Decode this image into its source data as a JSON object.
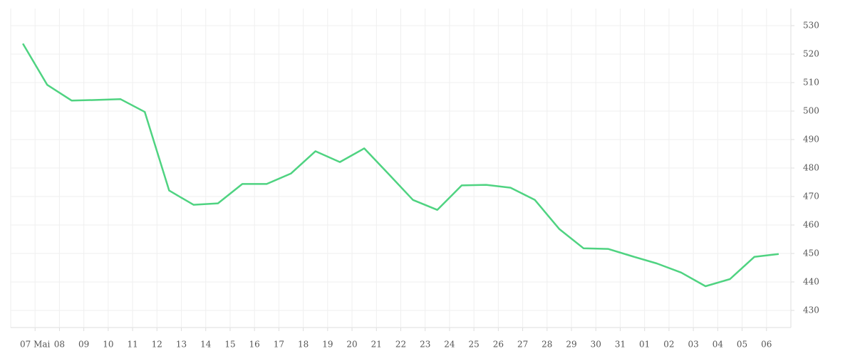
{
  "chart_data": {
    "type": "line",
    "x": [
      0.5,
      1.5,
      2.5,
      3.5,
      4.5,
      5.5,
      6.5,
      7.5,
      8.5,
      9.5,
      10.5,
      11.5,
      12.5,
      13.5,
      14.5,
      15.5,
      16.5,
      17.5,
      18.5,
      19.5,
      20.5,
      21.5,
      22.5,
      23.5,
      24.5,
      25.5,
      26.5,
      27.5,
      28.5,
      29.5,
      30.5,
      31.5
    ],
    "values": [
      523.7,
      509.2,
      503.7,
      503.9,
      504.2,
      499.7,
      472.1,
      467.1,
      467.6,
      474.4,
      474.4,
      478.1,
      485.9,
      482.1,
      486.9,
      477.9,
      468.8,
      465.3,
      473.9,
      474.1,
      473.1,
      468.8,
      458.6,
      451.8,
      451.6,
      449.0,
      446.5,
      443.3,
      438.5,
      441.0,
      448.8,
      449.8
    ],
    "color": "#4fd381",
    "xlim": [
      0,
      32
    ],
    "xticks": [
      {
        "value": 1,
        "label": "07 Mai"
      },
      {
        "value": 2,
        "label": "08"
      },
      {
        "value": 3,
        "label": "09"
      },
      {
        "value": 4,
        "label": "10"
      },
      {
        "value": 5,
        "label": "11"
      },
      {
        "value": 6,
        "label": "12"
      },
      {
        "value": 7,
        "label": "13"
      },
      {
        "value": 8,
        "label": "14"
      },
      {
        "value": 9,
        "label": "15"
      },
      {
        "value": 10,
        "label": "16"
      },
      {
        "value": 11,
        "label": "17"
      },
      {
        "value": 12,
        "label": "18"
      },
      {
        "value": 13,
        "label": "19"
      },
      {
        "value": 14,
        "label": "20"
      },
      {
        "value": 15,
        "label": "21"
      },
      {
        "value": 16,
        "label": "22"
      },
      {
        "value": 17,
        "label": "23"
      },
      {
        "value": 18,
        "label": "24"
      },
      {
        "value": 19,
        "label": "25"
      },
      {
        "value": 20,
        "label": "26"
      },
      {
        "value": 21,
        "label": "27"
      },
      {
        "value": 22,
        "label": "28"
      },
      {
        "value": 23,
        "label": "29"
      },
      {
        "value": 24,
        "label": "30"
      },
      {
        "value": 25,
        "label": "31"
      },
      {
        "value": 26,
        "label": "01"
      },
      {
        "value": 27,
        "label": "02"
      },
      {
        "value": 28,
        "label": "03"
      },
      {
        "value": 29,
        "label": "04"
      },
      {
        "value": 30,
        "label": "05"
      },
      {
        "value": 31,
        "label": "06"
      }
    ],
    "ylim": [
      424,
      536
    ],
    "yticks": [
      430,
      440,
      450,
      460,
      470,
      480,
      490,
      500,
      510,
      520,
      530
    ],
    "grid": true
  }
}
